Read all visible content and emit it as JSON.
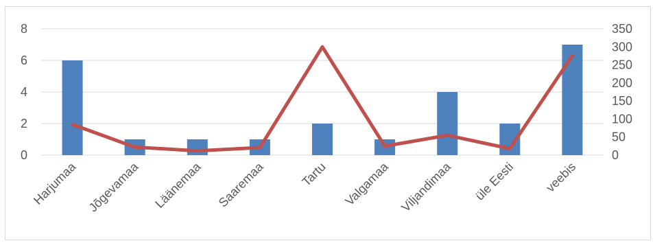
{
  "chart_data": {
    "type": "bar",
    "categories": [
      "Harjumaa",
      "Jõgevamaa",
      "Läänemaa",
      "Saaremaa",
      "Tartu",
      "Valgamaa",
      "Viljandimaa",
      "üle Eesti",
      "veebis"
    ],
    "series": [
      {
        "type": "bar",
        "axis": "left",
        "color": "#4f81bd",
        "values": [
          6,
          1,
          1,
          1,
          2,
          1,
          4,
          2,
          7
        ]
      },
      {
        "type": "line",
        "axis": "right",
        "color": "#c0504d",
        "values": [
          85,
          22,
          12,
          21,
          300,
          25,
          55,
          18,
          275
        ]
      }
    ],
    "y_left": {
      "ylim": [
        0,
        8
      ],
      "ticks": [
        "0",
        "2",
        "4",
        "6",
        "8"
      ]
    },
    "y_right": {
      "ylim": [
        0,
        350
      ],
      "ticks": [
        "0",
        "50",
        "100",
        "150",
        "200",
        "250",
        "300",
        "350"
      ]
    },
    "grid": true,
    "legend": "none"
  }
}
